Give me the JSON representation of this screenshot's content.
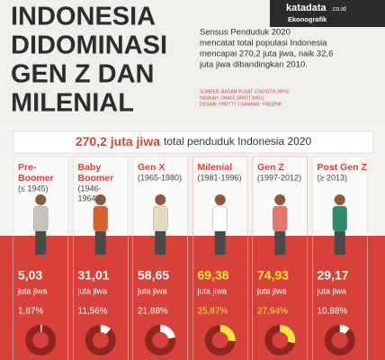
{
  "header": {
    "title_lines": [
      "INDONESIA",
      "DIDOMINASI",
      "GEN Z DAN",
      "MILENIAL"
    ],
    "logo": "katadata",
    "logo_domain": ".co.id",
    "logo_sub": "Ekonografik",
    "intro_lines": [
      "Sensus Penduduk 2020",
      "mencatat total populasi Indonesia",
      "mencapai 270,2 juta jiwa, naik 32,6",
      "juta jiwa dibandingkan 2010."
    ],
    "credits": [
      "SUMBER: BADAN PUSAT STATISTIK (BPS)",
      "NASKAH: DIMAS JAROT BAYU",
      "DESAIN: PRETTY / GAMBAR: FREEPIK"
    ]
  },
  "banner": {
    "bold": "270,2 juta jiwa",
    "rest": "total penduduk Indonesia 2020"
  },
  "generations": [
    {
      "name": [
        "Pre-",
        "Boomer"
      ],
      "years": [
        "(≤ 1945)"
      ],
      "value": "5,03",
      "unit": "juta jiwa",
      "percent": 1.87,
      "percent_label": "1,87%",
      "highlight": false
    },
    {
      "name": [
        "Baby",
        "Boomer"
      ],
      "years": [
        "(1946-",
        "1964)"
      ],
      "value": "31,01",
      "unit": "juta jiwa",
      "percent": 11.56,
      "percent_label": "11,56%",
      "highlight": false
    },
    {
      "name": [
        "Gen X"
      ],
      "years": [
        "(1965-1980)"
      ],
      "value": "58,65",
      "unit": "juta jiwa",
      "percent": 21.88,
      "percent_label": "21,88%",
      "highlight": false
    },
    {
      "name": [
        "Milenial"
      ],
      "years": [
        "(1981-1996)"
      ],
      "value": "69,38",
      "unit": "juta jiwa",
      "percent": 25.87,
      "percent_label": "25,87%",
      "highlight": true
    },
    {
      "name": [
        "Gen Z"
      ],
      "years": [
        "(1997-2012)"
      ],
      "value": "74,93",
      "unit": "juta jiwa",
      "percent": 27.94,
      "percent_label": "27,94%",
      "highlight": true
    },
    {
      "name": [
        "Post Gen Z"
      ],
      "years": [
        "(≥ 2013)"
      ],
      "value": "29,17",
      "unit": "juta jiwa",
      "percent": 10.88,
      "percent_label": "10,88%",
      "highlight": false
    }
  ]
}
